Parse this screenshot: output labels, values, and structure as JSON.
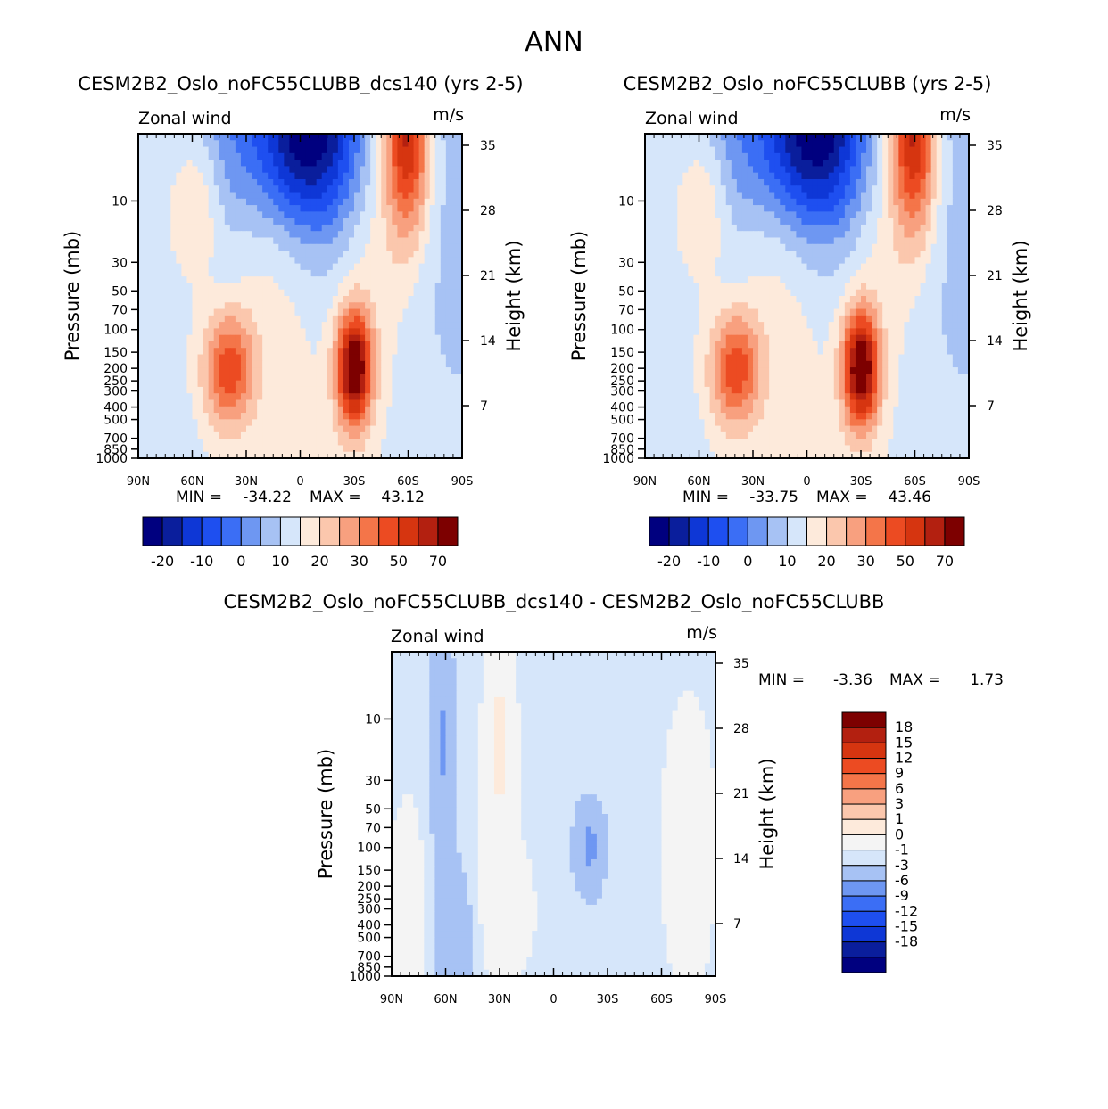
{
  "page_title": "ANN",
  "palettes": {
    "field": [
      "#00007f",
      "#0a1e9c",
      "#0e37d6",
      "#1e4ff0",
      "#3b6ef5",
      "#6e97f2",
      "#a7c2f4",
      "#d6e6fa",
      "#fdeadb",
      "#fbc7ad",
      "#f8a07f",
      "#f47549",
      "#ec4b22",
      "#d63510",
      "#b32010",
      "#7d0000"
    ],
    "diff": [
      "#00007f",
      "#0a1e9c",
      "#0e37d6",
      "#1e4ff0",
      "#3b6ef5",
      "#6e97f2",
      "#a7c2f4",
      "#d6e6fa",
      "#f4f4f4",
      "#fdeadb",
      "#fbc7ad",
      "#f8a07f",
      "#f47549",
      "#ec4b22",
      "#d63510",
      "#b32010",
      "#7d0000"
    ]
  },
  "chart_data": [
    {
      "type": "heatmap",
      "title": "CESM2B2_Oslo_noFC55CLUBB_dcs140 (yrs 2-5)",
      "variable": "Zonal wind",
      "units": "m/s",
      "xlabel": "",
      "ylabel": "Pressure (mb)",
      "ylabel_right": "Height (km)",
      "x_ticks": [
        "90N",
        "60N",
        "30N",
        "0",
        "30S",
        "60S",
        "90S"
      ],
      "y_ticks": [
        "10",
        "30",
        "50",
        "70",
        "100",
        "150",
        "200",
        "250",
        "300",
        "400",
        "500",
        "700",
        "850",
        "1000"
      ],
      "height_ticks": [
        "35",
        "28",
        "21",
        "14",
        "7"
      ],
      "min_label": "MIN =",
      "min_value": "-34.22",
      "max_label": "MAX =",
      "max_value": "43.12",
      "colorbar_labels": [
        "-20",
        "-10",
        "0",
        "10",
        "20",
        "30",
        "50",
        "70"
      ],
      "features": [
        {
          "lat": -30,
          "pressure": 200,
          "value": 43.1,
          "sign": "positive"
        },
        {
          "lat": 40,
          "pressure": 200,
          "value": 24,
          "sign": "positive"
        },
        {
          "lat": 0,
          "pressure": 5,
          "value": -34.2,
          "sign": "negative"
        },
        {
          "lat": -60,
          "pressure": 5,
          "value": 35,
          "sign": "positive"
        }
      ]
    },
    {
      "type": "heatmap",
      "title": "CESM2B2_Oslo_noFC55CLUBB (yrs 2-5)",
      "variable": "Zonal wind",
      "units": "m/s",
      "xlabel": "",
      "ylabel": "Pressure (mb)",
      "ylabel_right": "Height (km)",
      "x_ticks": [
        "90N",
        "60N",
        "30N",
        "0",
        "30S",
        "60S",
        "90S"
      ],
      "y_ticks": [
        "10",
        "30",
        "50",
        "70",
        "100",
        "150",
        "200",
        "250",
        "300",
        "400",
        "500",
        "700",
        "850",
        "1000"
      ],
      "height_ticks": [
        "35",
        "28",
        "21",
        "14",
        "7"
      ],
      "min_label": "MIN =",
      "min_value": "-33.75",
      "max_label": "MAX =",
      "max_value": "43.46",
      "colorbar_labels": [
        "-20",
        "-10",
        "0",
        "10",
        "20",
        "30",
        "50",
        "70"
      ],
      "features": [
        {
          "lat": -30,
          "pressure": 200,
          "value": 43.5,
          "sign": "positive"
        },
        {
          "lat": 40,
          "pressure": 200,
          "value": 24,
          "sign": "positive"
        },
        {
          "lat": 0,
          "pressure": 5,
          "value": -33.8,
          "sign": "negative"
        },
        {
          "lat": -60,
          "pressure": 5,
          "value": 35,
          "sign": "positive"
        }
      ]
    },
    {
      "type": "heatmap",
      "title": "CESM2B2_Oslo_noFC55CLUBB_dcs140 - CESM2B2_Oslo_noFC55CLUBB",
      "variable": "Zonal wind",
      "units": "m/s",
      "xlabel": "",
      "ylabel": "Pressure (mb)",
      "ylabel_right": "Height (km)",
      "x_ticks": [
        "90N",
        "60N",
        "30N",
        "0",
        "30S",
        "60S",
        "90S"
      ],
      "y_ticks": [
        "10",
        "30",
        "50",
        "70",
        "100",
        "150",
        "200",
        "250",
        "300",
        "400",
        "500",
        "700",
        "850",
        "1000"
      ],
      "height_ticks": [
        "35",
        "28",
        "21",
        "14",
        "7"
      ],
      "min_label": "MIN =",
      "min_value": "-3.36",
      "max_label": "MAX =",
      "max_value": "1.73",
      "colorbar_labels": [
        "18",
        "15",
        "12",
        "9",
        "6",
        "3",
        "1",
        "0",
        "-1",
        "-3",
        "-6",
        "-9",
        "-12",
        "-15",
        "-18"
      ],
      "features": [
        {
          "lat": -20,
          "pressure": 100,
          "value": -3.4,
          "sign": "negative"
        },
        {
          "lat": 60,
          "pressure": 10,
          "value": -3,
          "sign": "negative"
        },
        {
          "lat": 30,
          "pressure": 10,
          "value": 1.7,
          "sign": "positive"
        }
      ]
    }
  ]
}
